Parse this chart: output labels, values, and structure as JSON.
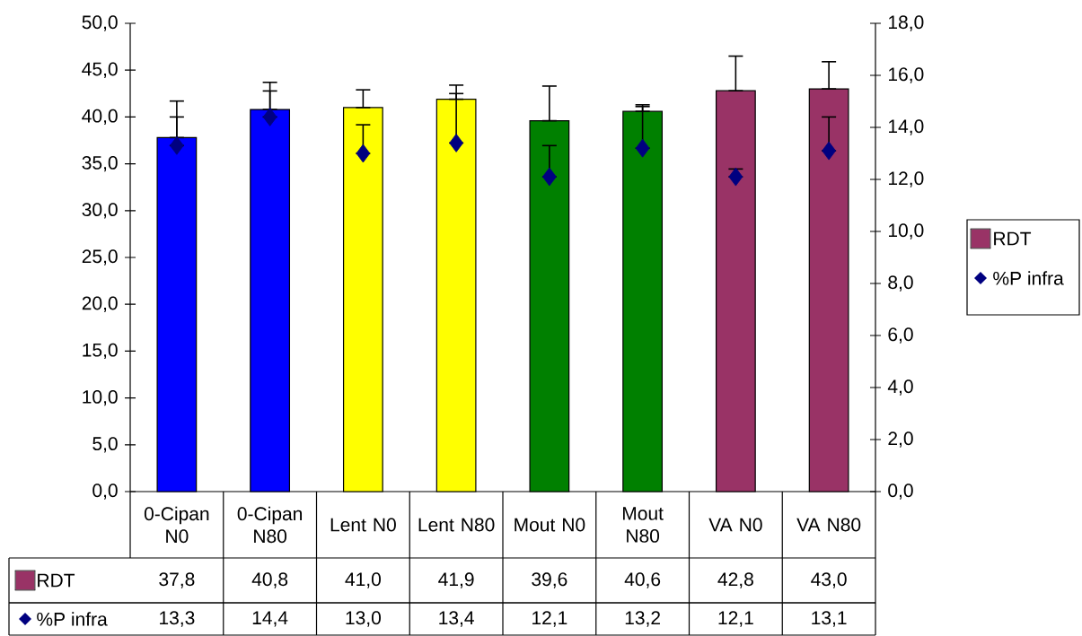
{
  "chart_data": {
    "type": "bar",
    "categories": [
      "0-Cipan N0",
      "0-Cipan N80",
      "Lent N0",
      "Lent N80",
      "Mout N0",
      "Mout N80",
      "VA N0",
      "VA N80"
    ],
    "series": [
      {
        "name": "RDT",
        "color": "#993366",
        "colors": [
          "#0000ff",
          "#0000ff",
          "#ffff00",
          "#ffff00",
          "#008000",
          "#008000",
          "#993366",
          "#993366"
        ],
        "values": [
          37.8,
          40.8,
          41.0,
          41.9,
          39.6,
          40.6,
          42.8,
          43.0
        ],
        "errors": [
          [
            37.8,
            41.7
          ],
          [
            40.8,
            43.7
          ],
          [
            41.0,
            42.9
          ],
          [
            41.9,
            43.4
          ],
          [
            39.6,
            43.3
          ],
          [
            40.6,
            41.3
          ],
          [
            42.8,
            46.5
          ],
          [
            43.0,
            45.9
          ]
        ],
        "value_labels": [
          "37,8",
          "40,8",
          "41,0",
          "41,9",
          "39,6",
          "40,6",
          "42,8",
          "43,0"
        ]
      },
      {
        "name": "%P infra",
        "type": "scatter",
        "axis": "y2",
        "marker": "diamond",
        "color": "#000080",
        "values": [
          13.3,
          14.4,
          13.0,
          13.4,
          12.1,
          13.2,
          12.1,
          13.1
        ],
        "errors": [
          [
            13.3,
            14.4
          ],
          [
            14.4,
            15.4
          ],
          [
            13.0,
            14.1
          ],
          [
            13.4,
            15.3
          ],
          [
            12.1,
            13.3
          ],
          [
            13.2,
            14.8
          ],
          [
            12.1,
            12.4
          ],
          [
            13.1,
            14.4
          ]
        ],
        "value_labels": [
          "13,3",
          "14,4",
          "13,0",
          "13,4",
          "12,1",
          "13,2",
          "12,1",
          "13,1"
        ]
      }
    ],
    "ylim": [
      0,
      50
    ],
    "yticks": [
      {
        "value": 0,
        "label": "0,0"
      },
      {
        "value": 5,
        "label": "5,0"
      },
      {
        "value": 10,
        "label": "10,0"
      },
      {
        "value": 15,
        "label": "15,0"
      },
      {
        "value": 20,
        "label": "20,0"
      },
      {
        "value": 25,
        "label": "25,0"
      },
      {
        "value": 30,
        "label": "30,0"
      },
      {
        "value": 35,
        "label": "35,0"
      },
      {
        "value": 40,
        "label": "40,0"
      },
      {
        "value": 45,
        "label": "45,0"
      },
      {
        "value": 50,
        "label": "50,0"
      }
    ],
    "y2lim": [
      0,
      18
    ],
    "y2ticks": [
      {
        "value": 0,
        "label": "0,0"
      },
      {
        "value": 2,
        "label": "2,0"
      },
      {
        "value": 4,
        "label": "4,0"
      },
      {
        "value": 6,
        "label": "6,0"
      },
      {
        "value": 8,
        "label": "8,0"
      },
      {
        "value": 10,
        "label": "10,0"
      },
      {
        "value": 12,
        "label": "12,0"
      },
      {
        "value": 14,
        "label": "14,0"
      },
      {
        "value": 16,
        "label": "16,0"
      },
      {
        "value": 18,
        "label": "18,0"
      }
    ],
    "legend": "right"
  }
}
